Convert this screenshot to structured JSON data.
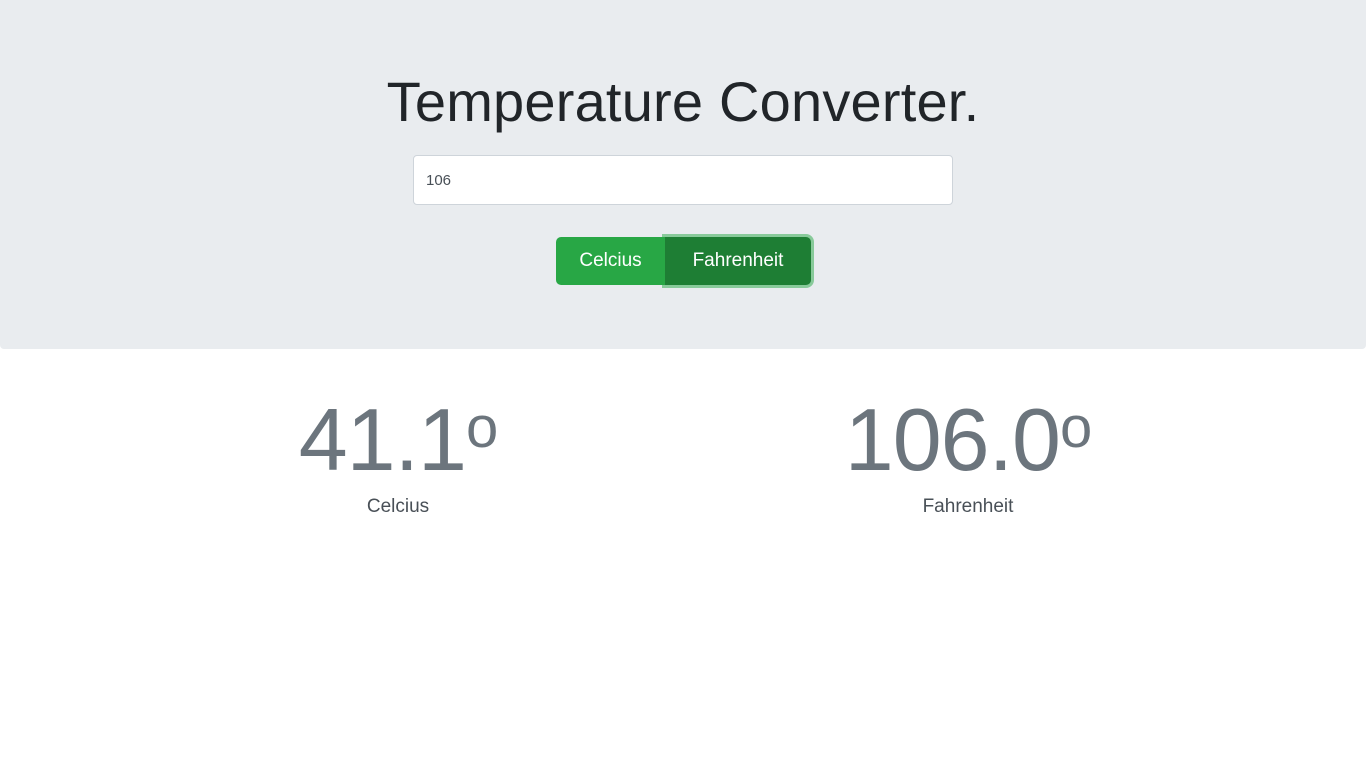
{
  "header": {
    "title": "Temperature Converter."
  },
  "input": {
    "value": "106"
  },
  "buttons": {
    "celcius_label": "Celcius",
    "fahrenheit_label": "Fahrenheit",
    "active": "Fahrenheit"
  },
  "results": {
    "celcius_value": "41.1",
    "celcius_unit_symbol": "o",
    "celcius_label": "Celcius",
    "fahrenheit_value": "106.0",
    "fahrenheit_unit_symbol": "o",
    "fahrenheit_label": "Fahrenheit"
  },
  "colors": {
    "success": "#28a745",
    "success_active": "#1e7e34",
    "jumbotron_bg": "#e9ecef",
    "muted_text": "#6c757d"
  }
}
